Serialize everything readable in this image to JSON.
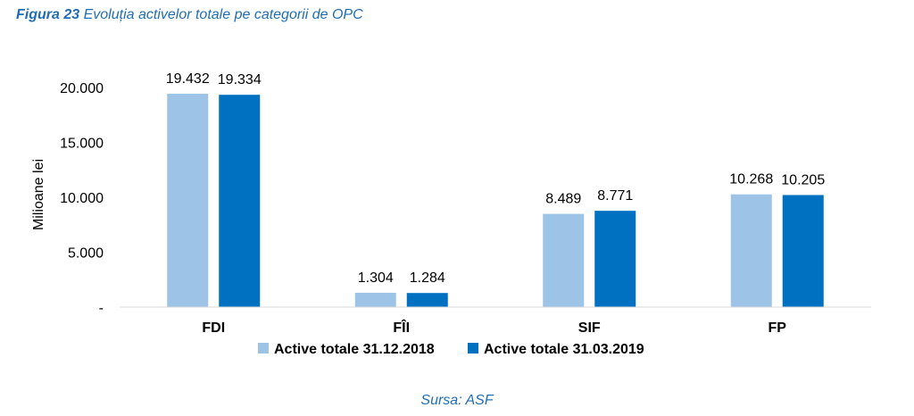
{
  "figure": {
    "label": "Figura 23",
    "title": "Evoluția activelor totale pe categorii de OPC",
    "source": "Sursa: ASF"
  },
  "chart_data": {
    "type": "bar",
    "categories": [
      "FDI",
      "FÎI",
      "SIF",
      "FP"
    ],
    "series": [
      {
        "name": "Active totale 31.12.2018",
        "values": [
          19432,
          1304,
          8489,
          10268
        ],
        "labels": [
          "19.432",
          "1.304",
          "8.489",
          "10.268"
        ],
        "color": "#9dc3e6"
      },
      {
        "name": "Active totale 31.03.2019",
        "values": [
          19334,
          1284,
          8771,
          10205
        ],
        "labels": [
          "19.334",
          "1.284",
          "8.771",
          "10.205"
        ],
        "color": "#0070c0"
      }
    ],
    "ylabel": "Milioane lei",
    "ylim": [
      0,
      20000
    ],
    "yticks": [
      0,
      5000,
      10000,
      15000,
      20000
    ],
    "ytick_labels": [
      "-",
      "5.000",
      "10.000",
      "15.000",
      "20.000"
    ],
    "grid": false,
    "legend_position": "bottom"
  }
}
